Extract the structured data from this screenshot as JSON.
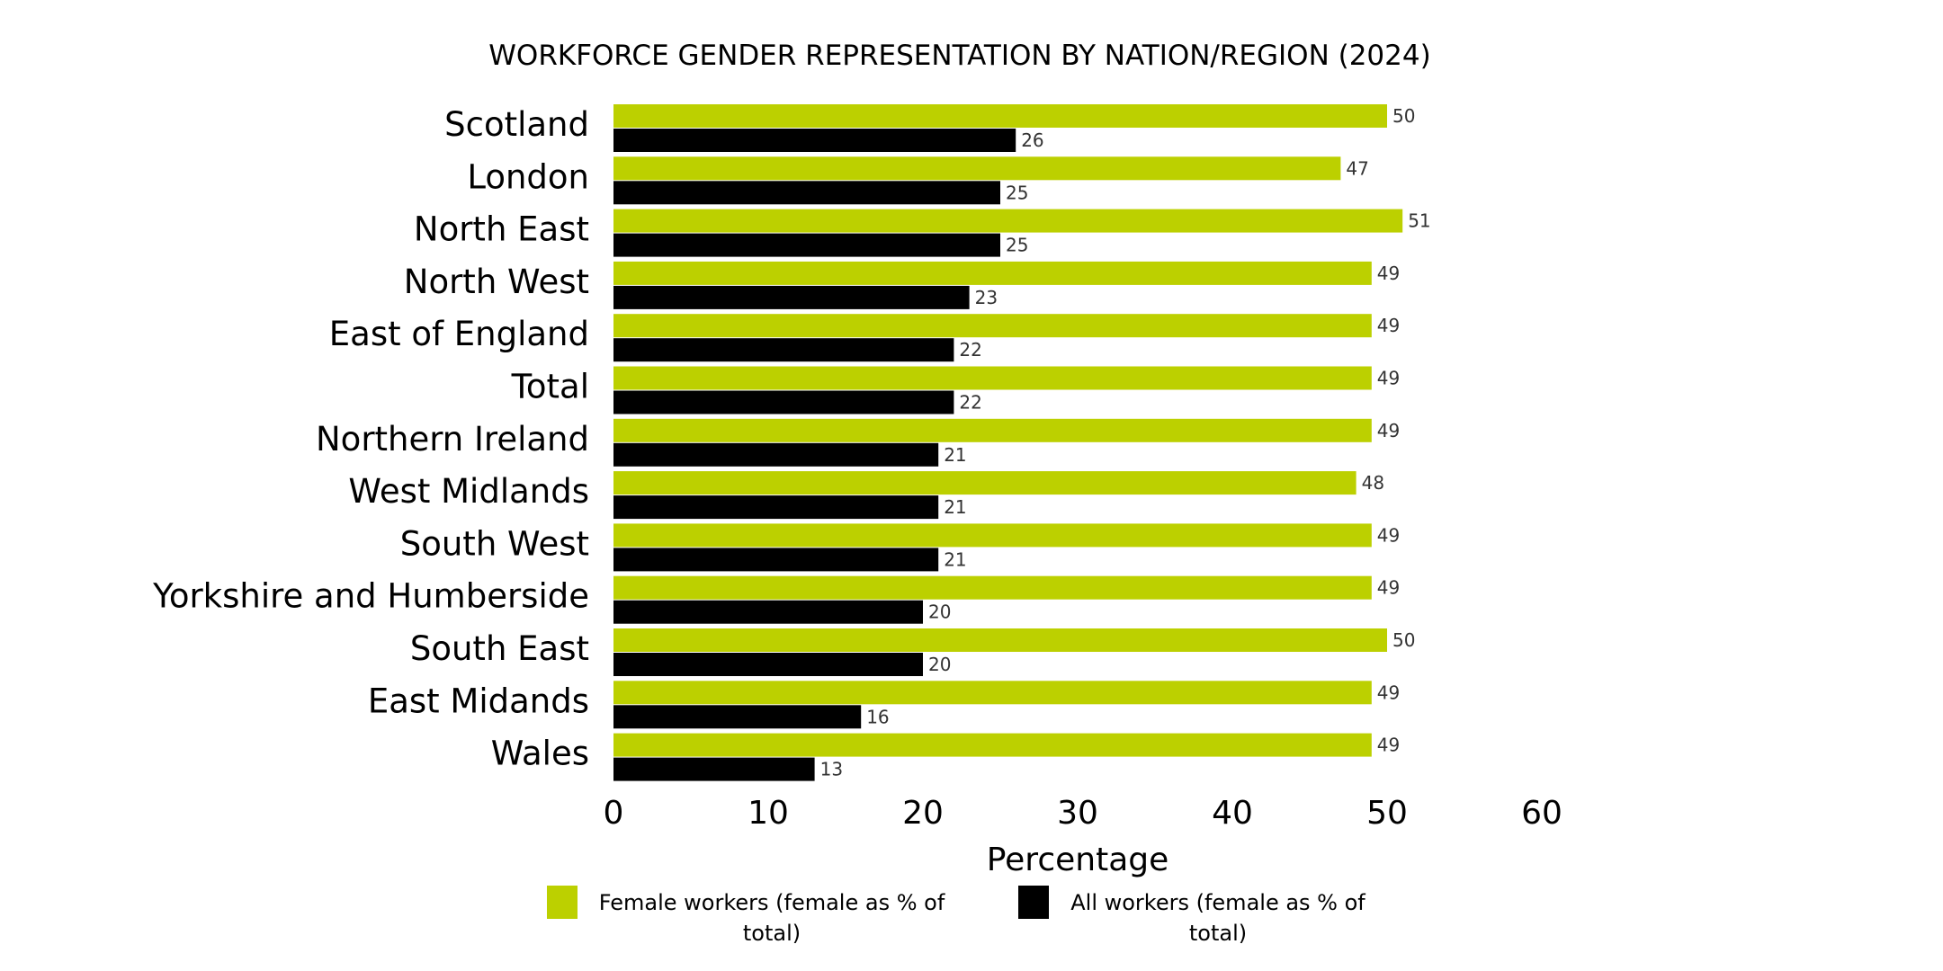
{
  "chart_data": {
    "type": "bar",
    "orientation": "horizontal",
    "title": "WORKFORCE GENDER REPRESENTATION BY NATION/REGION (2024)",
    "xlabel": "Percentage",
    "ylabel": "",
    "xlim": [
      0,
      60
    ],
    "xticks": [
      0,
      10,
      20,
      30,
      40,
      50,
      60
    ],
    "grid": false,
    "legend_position": "bottom",
    "categories": [
      "Scotland",
      "London",
      "North East",
      "North West",
      "East of England",
      "Total",
      "Northern Ireland",
      "West Midlands",
      "South West",
      "Yorkshire and Humberside",
      "South East",
      "East Midands",
      "Wales"
    ],
    "series": [
      {
        "name": "Female workers (female as % of total)",
        "color": "#bcd000",
        "values": [
          50,
          47,
          51,
          49,
          49,
          49,
          49,
          48,
          49,
          49,
          50,
          49,
          49
        ]
      },
      {
        "name": "All workers (female as % of total)",
        "color": "#000000",
        "values": [
          26,
          25,
          25,
          23,
          22,
          22,
          21,
          21,
          21,
          20,
          20,
          16,
          13
        ]
      }
    ]
  }
}
